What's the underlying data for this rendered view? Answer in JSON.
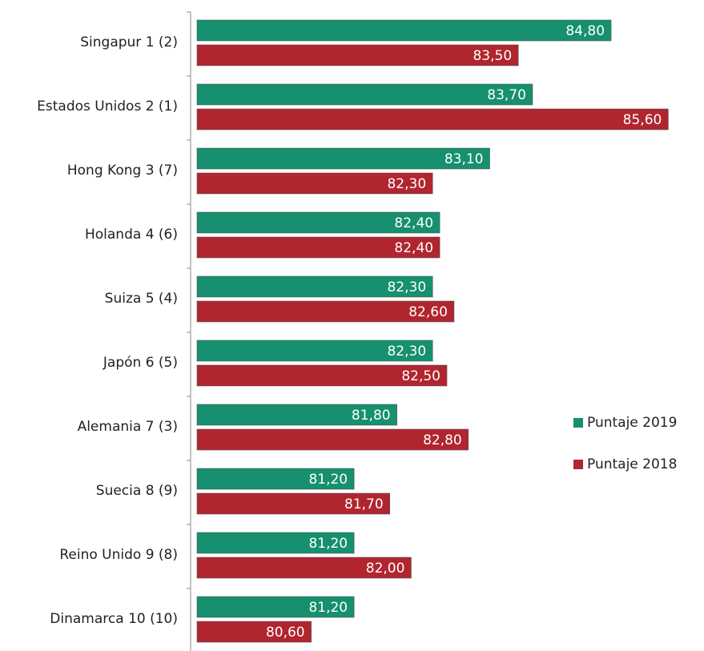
{
  "chart_data": {
    "type": "bar",
    "orientation": "horizontal",
    "categories": [
      "Singapur 1 (2)",
      "Estados Unidos 2 (1)",
      "Hong Kong 3 (7)",
      "Holanda 4 (6)",
      "Suiza 5 (4)",
      "Japón 6 (5)",
      "Alemania 7 (3)",
      "Suecia 8 (9)",
      "Reino Unido 9 (8)",
      "Dinamarca 10 (10)"
    ],
    "series": [
      {
        "name": "Puntaje 2019",
        "color": "#16906f",
        "values": [
          84.8,
          83.7,
          83.1,
          82.4,
          82.3,
          82.3,
          81.8,
          81.2,
          81.2,
          81.2
        ],
        "value_labels": [
          "84,80",
          "83,70",
          "83,10",
          "82,40",
          "82,30",
          "82,30",
          "81,80",
          "81,20",
          "81,20",
          "81,20"
        ]
      },
      {
        "name": "Puntaje 2018",
        "color": "#b1252f",
        "values": [
          83.5,
          85.6,
          82.3,
          82.4,
          82.6,
          82.5,
          82.8,
          81.7,
          82.0,
          80.6
        ],
        "value_labels": [
          "83,50",
          "85,60",
          "82,30",
          "82,40",
          "82,60",
          "82,50",
          "82,80",
          "81,70",
          "82,00",
          "80,60"
        ]
      }
    ],
    "xlim": [
      79,
      86
    ],
    "legend": "right"
  }
}
